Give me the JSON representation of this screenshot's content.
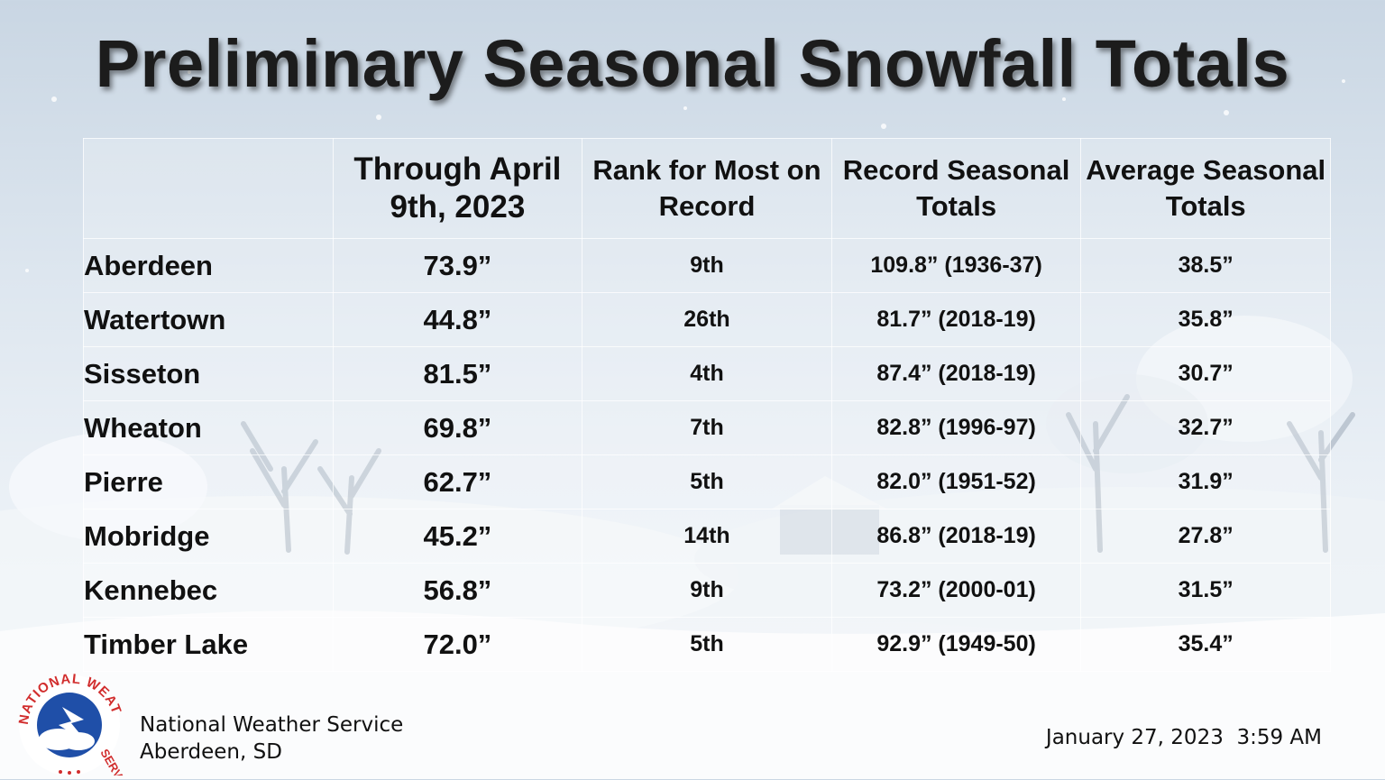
{
  "title": "Preliminary Seasonal Snowfall Totals",
  "table": {
    "headers": [
      "",
      "Through April 9th, 2023",
      "Rank for Most on Record",
      "Record Seasonal Totals",
      "Average Seasonal Totals"
    ],
    "rows": [
      {
        "site": "Aberdeen",
        "total": "73.9”",
        "rank": "9th",
        "record": "109.8” (1936-37)",
        "average": "38.5”"
      },
      {
        "site": "Watertown",
        "total": "44.8”",
        "rank": "26th",
        "record": "81.7” (2018-19)",
        "average": "35.8”"
      },
      {
        "site": "Sisseton",
        "total": "81.5”",
        "rank": "4th",
        "record": "87.4” (2018-19)",
        "average": "30.7”"
      },
      {
        "site": "Wheaton",
        "total": "69.8”",
        "rank": "7th",
        "record": "82.8” (1996-97)",
        "average": "32.7”"
      },
      {
        "site": "Pierre",
        "total": "62.7”",
        "rank": "5th",
        "record": "82.0” (1951-52)",
        "average": "31.9”"
      },
      {
        "site": "Mobridge",
        "total": "45.2”",
        "rank": "14th",
        "record": "86.8” (2018-19)",
        "average": "27.8”"
      },
      {
        "site": "Kennebec",
        "total": "56.8”",
        "rank": "9th",
        "record": "73.2” (2000-01)",
        "average": "31.5”"
      },
      {
        "site": "Timber Lake",
        "total": "72.0”",
        "rank": "5th",
        "record": "92.9” (1949-50)",
        "average": "35.4”"
      }
    ]
  },
  "footer": {
    "office_line1": "National Weather Service",
    "office_line2": "Aberdeen, SD",
    "timestamp": "January 27, 2023  3:59 AM",
    "logo_text": "NATIONAL WEATHER SERVICE"
  },
  "colors": {
    "logo_red": "#d12d2d",
    "logo_blue": "#1f4fa8",
    "text": "#111111"
  }
}
